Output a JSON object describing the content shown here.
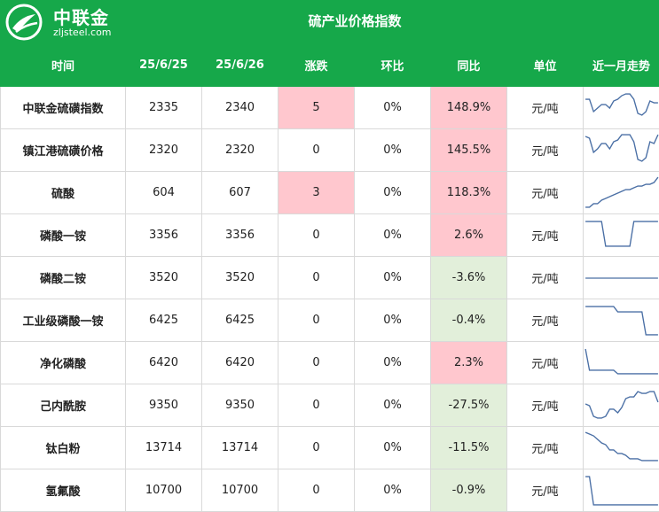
{
  "brand": {
    "name_cn": "中联金",
    "site": "zljsteel.com"
  },
  "title": "硫产业价格指数",
  "columns": [
    "时间",
    "25/6/25",
    "25/6/26",
    "涨跌",
    "环比",
    "同比",
    "单位",
    "近一月走势"
  ],
  "colors": {
    "header_green": "#16a84a",
    "up_red": "#ffc7ce",
    "down_green": "#e2efda",
    "spark_line": "#4a6fa5"
  },
  "rows": [
    {
      "name": "中联金硫磺指数",
      "d1": "2335",
      "d2": "2340",
      "change": "5",
      "mom": "0%",
      "yoy": "148.9%",
      "unit": "元/吨",
      "spark": [
        0.75,
        0.75,
        0.4,
        0.5,
        0.6,
        0.6,
        0.5,
        0.7,
        0.75,
        0.85,
        0.9,
        0.9,
        0.75,
        0.35,
        0.3,
        0.4,
        0.7,
        0.65,
        0.65
      ]
    },
    {
      "name": "镇江港硫磺价格",
      "d1": "2320",
      "d2": "2320",
      "change": "0",
      "mom": "0%",
      "yoy": "145.5%",
      "unit": "元/吨",
      "spark": [
        0.9,
        0.85,
        0.45,
        0.55,
        0.7,
        0.7,
        0.55,
        0.75,
        0.8,
        0.95,
        0.95,
        0.95,
        0.75,
        0.25,
        0.2,
        0.3,
        0.75,
        0.7,
        0.95
      ]
    },
    {
      "name": "硫酸",
      "d1": "604",
      "d2": "607",
      "change": "3",
      "mom": "0%",
      "yoy": "118.3%",
      "unit": "元/吨",
      "spark": [
        0.1,
        0.1,
        0.2,
        0.2,
        0.3,
        0.35,
        0.4,
        0.45,
        0.5,
        0.55,
        0.6,
        0.6,
        0.65,
        0.7,
        0.7,
        0.75,
        0.75,
        0.8,
        0.95
      ]
    },
    {
      "name": "磷酸一铵",
      "d1": "3356",
      "d2": "3356",
      "change": "0",
      "mom": "0%",
      "yoy": "2.6%",
      "unit": "元/吨",
      "spark": [
        0.9,
        0.9,
        0.9,
        0.9,
        0.9,
        0.2,
        0.2,
        0.2,
        0.2,
        0.2,
        0.2,
        0.2,
        0.9,
        0.9,
        0.9,
        0.9,
        0.9,
        0.9,
        0.9
      ]
    },
    {
      "name": "磷酸二铵",
      "d1": "3520",
      "d2": "3520",
      "change": "0",
      "mom": "0%",
      "yoy": "-3.6%",
      "unit": "元/吨",
      "spark": [
        0.5,
        0.5,
        0.5,
        0.5,
        0.5,
        0.5,
        0.5,
        0.5,
        0.5,
        0.5,
        0.5,
        0.5,
        0.5,
        0.5,
        0.5,
        0.5,
        0.5,
        0.5,
        0.5
      ]
    },
    {
      "name": "工业级磷酸一铵",
      "d1": "6425",
      "d2": "6425",
      "change": "0",
      "mom": "0%",
      "yoy": "-0.4%",
      "unit": "元/吨",
      "spark": [
        0.9,
        0.9,
        0.9,
        0.9,
        0.9,
        0.9,
        0.9,
        0.9,
        0.75,
        0.75,
        0.75,
        0.75,
        0.75,
        0.75,
        0.75,
        0.1,
        0.1,
        0.1,
        0.1
      ]
    },
    {
      "name": "净化磷酸",
      "d1": "6420",
      "d2": "6420",
      "change": "0",
      "mom": "0%",
      "yoy": "2.3%",
      "unit": "元/吨",
      "spark": [
        0.9,
        0.3,
        0.3,
        0.3,
        0.3,
        0.3,
        0.3,
        0.3,
        0.2,
        0.2,
        0.2,
        0.2,
        0.2,
        0.2,
        0.2,
        0.2,
        0.2,
        0.2,
        0.2
      ]
    },
    {
      "name": "己内酰胺",
      "d1": "9350",
      "d2": "9350",
      "change": "0",
      "mom": "0%",
      "yoy": "-27.5%",
      "unit": "元/吨",
      "spark": [
        0.55,
        0.5,
        0.2,
        0.15,
        0.15,
        0.2,
        0.4,
        0.4,
        0.3,
        0.45,
        0.7,
        0.75,
        0.75,
        0.9,
        0.85,
        0.85,
        0.9,
        0.9,
        0.6
      ]
    },
    {
      "name": "钛白粉",
      "d1": "13714",
      "d2": "13714",
      "change": "0",
      "mom": "0%",
      "yoy": "-11.5%",
      "unit": "元/吨",
      "spark": [
        0.95,
        0.9,
        0.85,
        0.75,
        0.65,
        0.6,
        0.45,
        0.45,
        0.35,
        0.35,
        0.3,
        0.2,
        0.2,
        0.2,
        0.15,
        0.15,
        0.15,
        0.15,
        0.15
      ]
    },
    {
      "name": "氢氟酸",
      "d1": "10700",
      "d2": "10700",
      "change": "0",
      "mom": "0%",
      "yoy": "-0.9%",
      "unit": "元/吨",
      "spark": [
        0.9,
        0.9,
        0.1,
        0.1,
        0.1,
        0.1,
        0.1,
        0.1,
        0.1,
        0.1,
        0.1,
        0.1,
        0.1,
        0.1,
        0.1,
        0.1,
        0.1,
        0.1,
        0.1
      ]
    }
  ]
}
